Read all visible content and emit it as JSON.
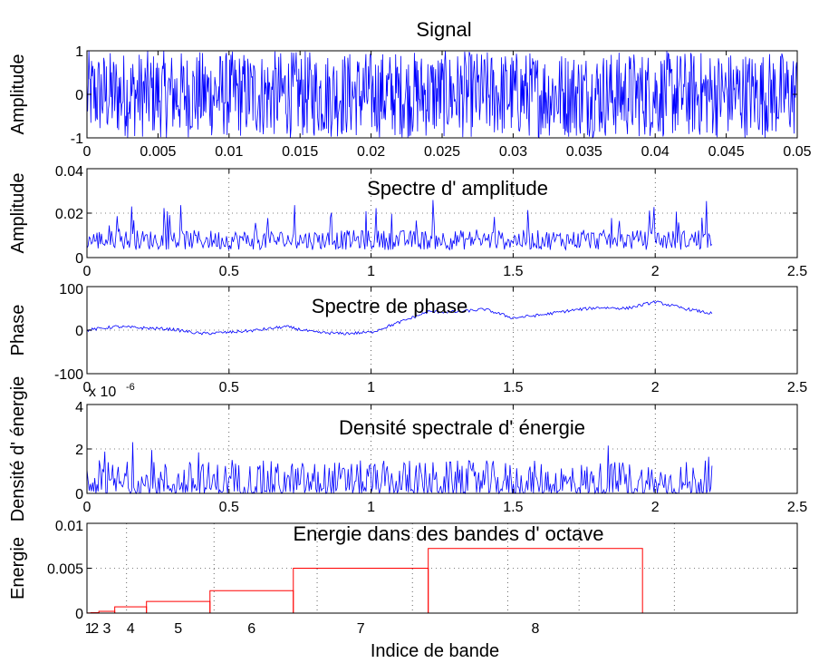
{
  "chart_data": [
    {
      "type": "line",
      "title": "Signal",
      "ylabel": "Amplitude",
      "xlabel": "",
      "xlim": [
        0,
        0.05
      ],
      "ylim": [
        -1,
        1
      ],
      "xticks": [
        0,
        0.005,
        0.01,
        0.015,
        0.02,
        0.025,
        0.03,
        0.035,
        0.04,
        0.045,
        0.05
      ],
      "xtick_labels": [
        "0",
        "0.005",
        "0.01",
        "0.015",
        "0.02",
        "0.025",
        "0.03",
        "0.035",
        "0.04",
        "0.045",
        "0.05"
      ],
      "yticks": [
        -1,
        0,
        1
      ],
      "ytick_labels": [
        "-1",
        "0",
        "1"
      ],
      "grid": false,
      "color": "#0000ff",
      "signal_description": "uniform random noise between -1 and 1 sampled over 0 to 0.05 s"
    },
    {
      "type": "line",
      "title": "Spectre d'  amplitude",
      "ylabel": "Amplitude",
      "xlabel": "",
      "xlim": [
        0,
        2.5
      ],
      "ylim": [
        0,
        0.04
      ],
      "data_x_range": [
        0,
        2.2
      ],
      "typical_y_range": [
        0,
        0.03
      ],
      "xticks": [
        0,
        0.5,
        1,
        1.5,
        2,
        2.5
      ],
      "xtick_labels": [
        "0",
        "0.5",
        "1",
        "1.5",
        "2",
        "2.5"
      ],
      "yticks": [
        0,
        0.02,
        0.04
      ],
      "ytick_labels": [
        "0",
        "0.02",
        "0.04"
      ],
      "grid": true,
      "color": "#0000ff"
    },
    {
      "type": "line",
      "title": "Spectre de phase",
      "ylabel": "Phase",
      "xlabel": "",
      "xlim": [
        0,
        2.5
      ],
      "ylim": [
        -100,
        100
      ],
      "x": [
        0,
        0.1,
        0.2,
        0.3,
        0.4,
        0.5,
        0.6,
        0.7,
        0.8,
        0.9,
        1.0,
        1.1,
        1.2,
        1.3,
        1.4,
        1.5,
        1.6,
        1.7,
        1.8,
        1.9,
        2.0,
        2.1,
        2.2
      ],
      "values": [
        0,
        8,
        5,
        2,
        -8,
        -5,
        0,
        8,
        -5,
        -8,
        -5,
        18,
        42,
        42,
        48,
        28,
        35,
        45,
        52,
        50,
        65,
        50,
        38
      ],
      "xticks": [
        0,
        0.5,
        1,
        1.5,
        2,
        2.5
      ],
      "xtick_labels": [
        "0",
        "0.5",
        "1",
        "1.5",
        "2",
        "2.5"
      ],
      "yticks": [
        -100,
        0,
        100
      ],
      "ytick_labels": [
        "-100",
        "0",
        "100"
      ],
      "grid": true,
      "color": "#0000ff"
    },
    {
      "type": "line",
      "title": "Densité spectrale d'  énergie",
      "ylabel": "Densité d'  énergie",
      "xlabel": "",
      "exponent_label": "x 10",
      "exponent_value": "-6",
      "xlim": [
        0,
        2.5
      ],
      "ylim": [
        0,
        4
      ],
      "data_x_range": [
        0,
        2.2
      ],
      "typical_y_range": [
        0,
        2.7
      ],
      "xticks": [
        0,
        0.5,
        1,
        1.5,
        2,
        2.5
      ],
      "xtick_labels": [
        "0",
        "0.5",
        "1",
        "1.5",
        "2",
        "2.5"
      ],
      "yticks": [
        0,
        2,
        4
      ],
      "ytick_labels": [
        "0",
        "2",
        "4"
      ],
      "grid": true,
      "color": "#0000ff"
    },
    {
      "type": "bar",
      "title": "Energie dans des bandes d'  octave",
      "ylabel": "Energie",
      "xlabel": "Indice de bande",
      "ylim": [
        0,
        0.01
      ],
      "categories": [
        "1",
        "2",
        "3",
        "4",
        "5",
        "6",
        "7",
        "8"
      ],
      "values": [
        2e-05,
        5e-05,
        0.0002,
        0.0007,
        0.0013,
        0.0025,
        0.005,
        0.0072
      ],
      "yticks": [
        0,
        0.005,
        0.01
      ],
      "ytick_labels": [
        "0",
        "0.005",
        "0.01"
      ],
      "grid": true,
      "color": "#ff0000"
    }
  ]
}
